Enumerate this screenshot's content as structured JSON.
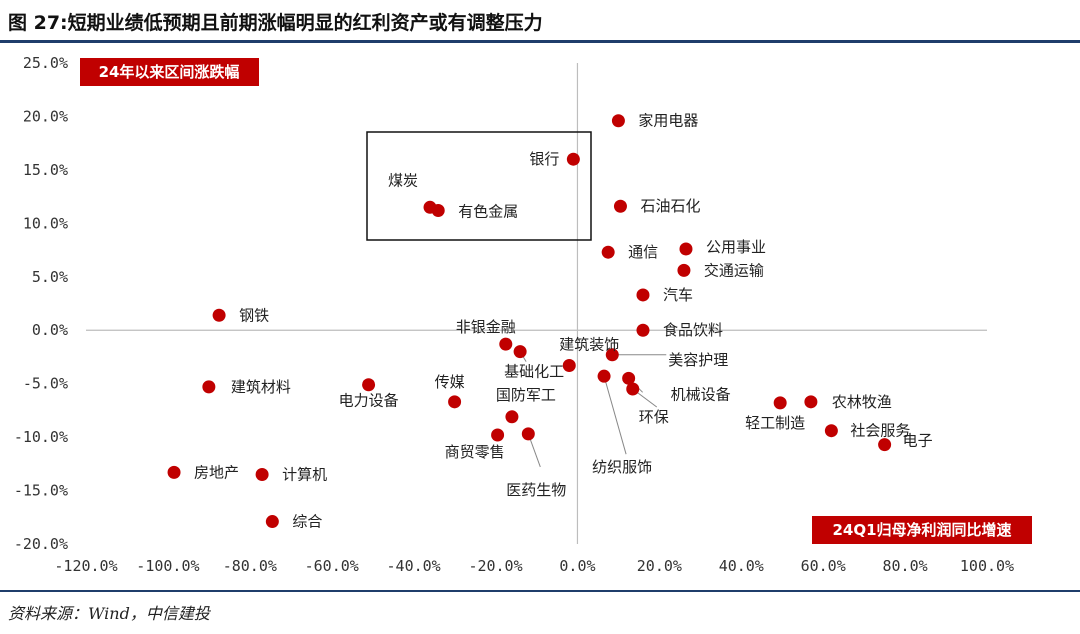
{
  "header": {
    "title": "图 27:短期业绩低预期且前期涨幅明显的红利资产或有调整压力"
  },
  "footer": {
    "source": "资料来源：Wind，中信建投"
  },
  "chart_data": {
    "type": "scatter",
    "x_axis_title": "24Q1归母净利润同比增速",
    "y_axis_title": "24年以来区间涨跌幅",
    "xlim": [
      -120,
      100
    ],
    "ylim": [
      -20,
      25
    ],
    "x_ticks": [
      "-120.0%",
      "-100.0%",
      "-80.0%",
      "-60.0%",
      "-40.0%",
      "-20.0%",
      "0.0%",
      "20.0%",
      "40.0%",
      "60.0%",
      "80.0%",
      "100.0%"
    ],
    "y_ticks": [
      "25.0%",
      "20.0%",
      "15.0%",
      "10.0%",
      "5.0%",
      "0.0%",
      "-5.0%",
      "-10.0%",
      "-15.0%",
      "-20.0%"
    ],
    "marker_color": "#c00000",
    "points": [
      {
        "name": "家用电器",
        "x": 10,
        "y": 19.6
      },
      {
        "name": "银行",
        "x": -1,
        "y": 16.0
      },
      {
        "name": "煤炭",
        "x": -36,
        "y": 11.5
      },
      {
        "name": "有色金属",
        "x": -34,
        "y": 11.2
      },
      {
        "name": "石油石化",
        "x": 10.5,
        "y": 11.6
      },
      {
        "name": "通信",
        "x": 7.5,
        "y": 7.3
      },
      {
        "name": "公用事业",
        "x": 26.5,
        "y": 7.6
      },
      {
        "name": "交通运输",
        "x": 26,
        "y": 5.6
      },
      {
        "name": "汽车",
        "x": 16,
        "y": 3.3
      },
      {
        "name": "钢铁",
        "x": -87.5,
        "y": 1.4
      },
      {
        "name": "食品饮料",
        "x": 16,
        "y": 0.0
      },
      {
        "name": "非银金融",
        "x": -17.5,
        "y": -1.3
      },
      {
        "name": "基础化工",
        "x": -14,
        "y": -2.0
      },
      {
        "name": "建筑装饰",
        "x": -2,
        "y": -3.3
      },
      {
        "name": "美容护理",
        "x": 8.5,
        "y": -2.3
      },
      {
        "name": "纺织服饰",
        "x": 6.5,
        "y": -4.3
      },
      {
        "name": "机械设备",
        "x": 12.5,
        "y": -4.5
      },
      {
        "name": "环保",
        "x": 13.5,
        "y": -5.5
      },
      {
        "name": "建筑材料",
        "x": -90,
        "y": -5.3
      },
      {
        "name": "电力设备",
        "x": -51,
        "y": -5.1
      },
      {
        "name": "传媒",
        "x": -30,
        "y": -6.7
      },
      {
        "name": "国防军工",
        "x": -16,
        "y": -8.1
      },
      {
        "name": "商贸零售",
        "x": -19.5,
        "y": -9.8
      },
      {
        "name": "医药生物",
        "x": -12,
        "y": -9.7
      },
      {
        "name": "轻工制造",
        "x": 49.5,
        "y": -6.8
      },
      {
        "name": "农林牧渔",
        "x": 57,
        "y": -6.7
      },
      {
        "name": "社会服务",
        "x": 62,
        "y": -9.4
      },
      {
        "name": "电子",
        "x": 75,
        "y": -10.7
      },
      {
        "name": "房地产",
        "x": -98.5,
        "y": -13.3
      },
      {
        "name": "计算机",
        "x": -77,
        "y": -13.5
      },
      {
        "name": "综合",
        "x": -74.5,
        "y": -17.9
      }
    ]
  }
}
